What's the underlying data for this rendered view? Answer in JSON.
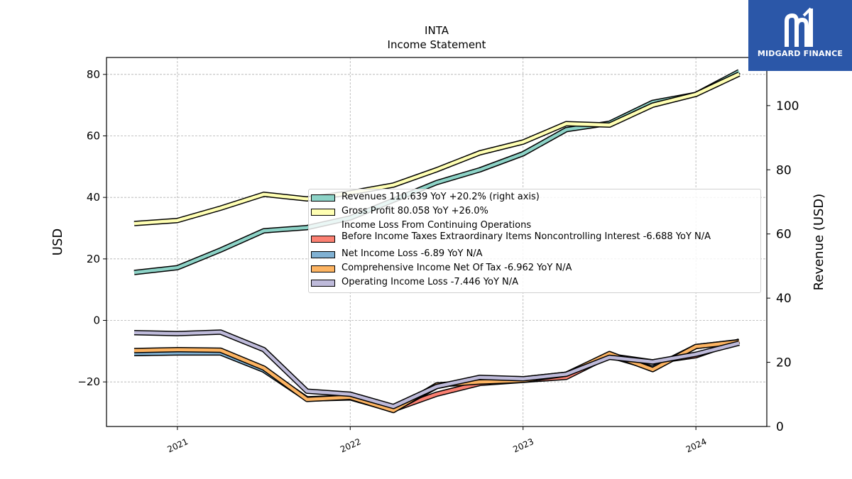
{
  "logo": {
    "text": "MIDGARD FINANCE"
  },
  "chart_data": {
    "type": "line",
    "title": "INTA",
    "subtitle": "Income Statement",
    "ylabel": "USD",
    "ylabel_right": "Revenue (USD)",
    "ylim": [
      -34.5,
      85.5
    ],
    "ylim_right": [
      0,
      115
    ],
    "yticks": [
      -20,
      0,
      20,
      40,
      60,
      80
    ],
    "yticks_right": [
      0,
      20,
      40,
      60,
      80,
      100
    ],
    "xticks": [
      "2021",
      "2022",
      "2023",
      "2024"
    ],
    "grid": true,
    "legend_position": "center-right",
    "x": [
      "2020-10",
      "2021-01",
      "2021-04",
      "2021-07",
      "2021-10",
      "2022-01",
      "2022-04",
      "2022-07",
      "2022-10",
      "2023-01",
      "2023-04",
      "2023-07",
      "2023-10",
      "2024-01",
      "2024-04"
    ],
    "series": [
      {
        "name": "Revenues",
        "legend": "Revenues  110.639 YoY +20.2% (right axis)",
        "color": "#8dd3c7",
        "axis": "right",
        "values": [
          48.0,
          49.5,
          55.0,
          61.0,
          62.0,
          65.0,
          70.5,
          76.0,
          80.0,
          85.0,
          92.5,
          94.5,
          101.0,
          103.5,
          110.6
        ]
      },
      {
        "name": "Gross Profit",
        "legend": "Gross Profit  80.058 YoY +26.0%",
        "color": "#ffffb3",
        "axis": "left",
        "values": [
          31.5,
          32.5,
          36.5,
          41.0,
          39.5,
          41.5,
          44.0,
          49.0,
          54.5,
          58.0,
          64.0,
          63.5,
          70.0,
          73.5,
          80.1
        ]
      },
      {
        "name": "Income Loss From Continuing Operations Before Income Taxes Extraordinary Items Noncontrolling Interest",
        "legend": "Income Loss From Continuing Operations\nBefore Income Taxes Extraordinary Items Noncontrolling Interest  -6.688 YoY N/A",
        "color": "#fb8072",
        "axis": "left",
        "values": [
          -10.8,
          -10.5,
          -10.5,
          -16.0,
          -25.5,
          -25.0,
          -29.0,
          -24.0,
          -20.5,
          -19.5,
          -18.5,
          -11.5,
          -13.5,
          -11.5,
          -6.7
        ]
      },
      {
        "name": "Net Income Loss",
        "legend": "Net Income Loss  -6.89 YoY N/A",
        "color": "#80b1d3",
        "axis": "left",
        "values": [
          -10.8,
          -10.6,
          -10.6,
          -16.2,
          -25.6,
          -25.2,
          -29.2,
          -21.5,
          -18.7,
          -19.0,
          -17.5,
          -11.5,
          -15.5,
          -8.5,
          -6.9
        ]
      },
      {
        "name": "Comprehensive Income Net Of Tax",
        "legend": "Comprehensive Income Net Of Tax  -6.962 YoY N/A",
        "color": "#fdb462",
        "axis": "left",
        "values": [
          -9.8,
          -9.5,
          -9.7,
          -15.5,
          -25.7,
          -25.0,
          -29.3,
          -21.0,
          -20.0,
          -19.5,
          -17.5,
          -10.8,
          -16.0,
          -8.5,
          -6.96
        ]
      },
      {
        "name": "Operating Income Loss",
        "legend": "Operating Income Loss  -7.446 YoY N/A",
        "color": "#bebada",
        "axis": "left",
        "values": [
          -4.0,
          -4.3,
          -3.8,
          -9.5,
          -23.0,
          -24.0,
          -28.0,
          -21.5,
          -18.5,
          -19.0,
          -17.5,
          -12.0,
          -13.5,
          -11.0,
          -7.4
        ]
      }
    ]
  }
}
